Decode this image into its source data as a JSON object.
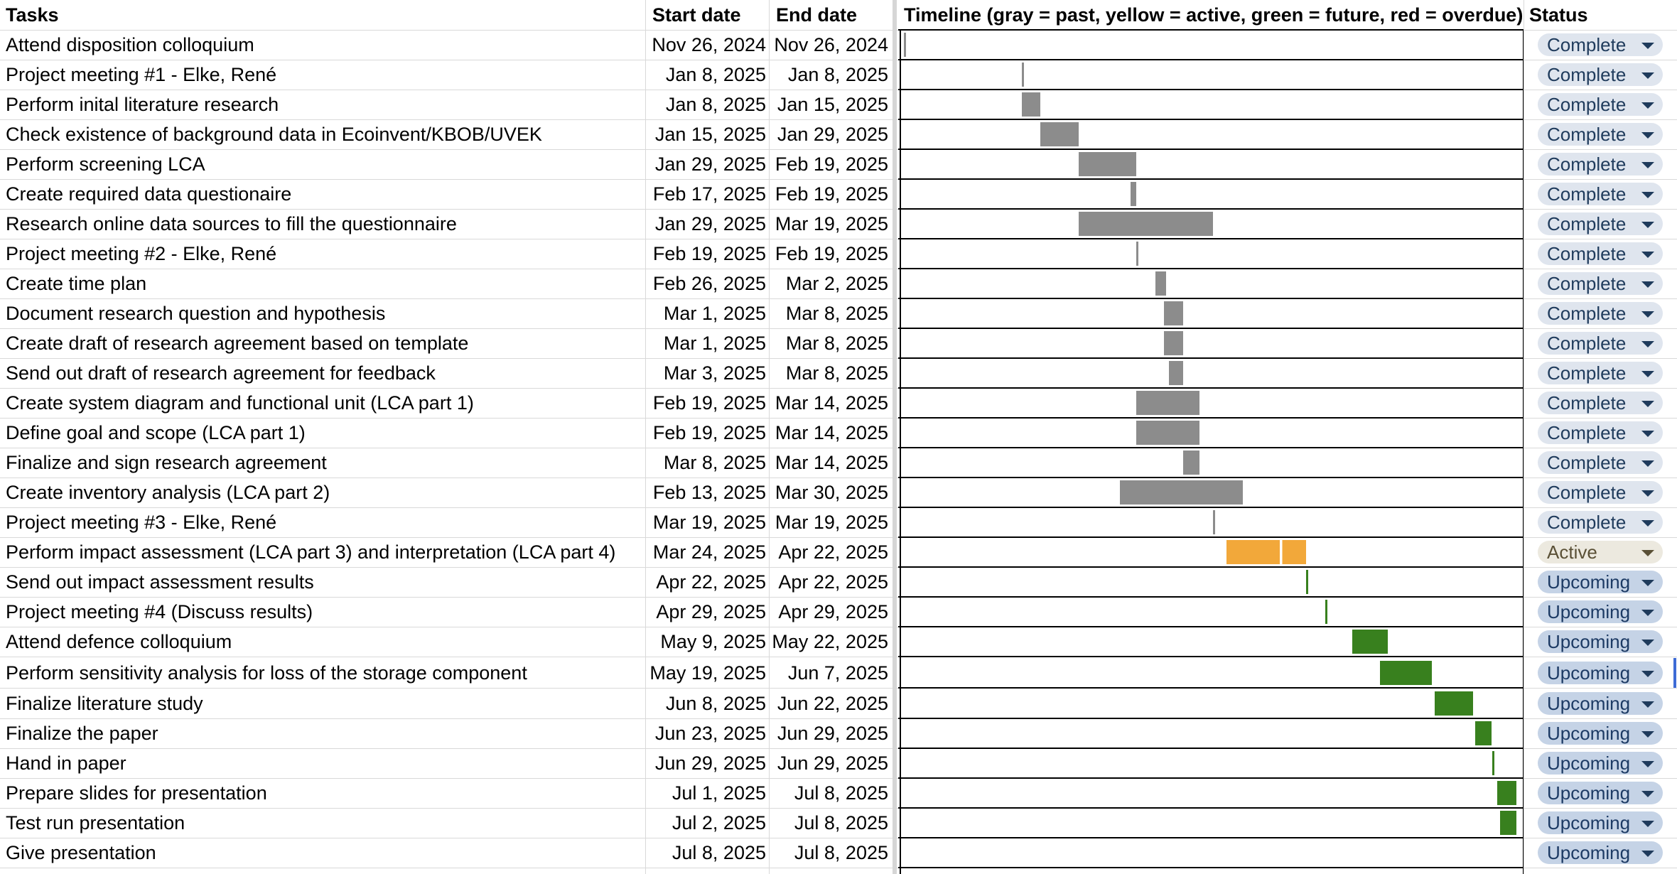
{
  "headers": {
    "tasks": "Tasks",
    "start": "Start date",
    "end": "End date",
    "timeline": "Timeline (gray = past, yellow = active, green = future, red = overdue)",
    "status": "Status"
  },
  "timeline_range": {
    "start": "2024-11-26",
    "end": "2025-07-09"
  },
  "colors": {
    "past": "#8c8c8c",
    "active": "#f2a83a",
    "future": "#38801e",
    "overdue": "#cc0000"
  },
  "status_options": [
    "Complete",
    "Active",
    "Upcoming"
  ],
  "rows": [
    {
      "task": "Attend disposition colloquium",
      "start": "Nov 26, 2024",
      "end": "Nov 26, 2024",
      "s": "2024-11-26",
      "e": "2024-11-26",
      "kind": "gray",
      "status": "Complete"
    },
    {
      "task": "Project meeting #1 - Elke, René",
      "start": "Jan 8, 2025",
      "end": "Jan 8, 2025",
      "s": "2025-01-08",
      "e": "2025-01-08",
      "kind": "gray",
      "status": "Complete"
    },
    {
      "task": "Perform inital literature research",
      "start": "Jan 8, 2025",
      "end": "Jan 15, 2025",
      "s": "2025-01-08",
      "e": "2025-01-15",
      "kind": "gray",
      "status": "Complete"
    },
    {
      "task": "Check existence of background data in Ecoinvent/KBOB/UVEK",
      "start": "Jan 15, 2025",
      "end": "Jan 29, 2025",
      "s": "2025-01-15",
      "e": "2025-01-29",
      "kind": "gray",
      "status": "Complete"
    },
    {
      "task": "Perform screening LCA",
      "start": "Jan 29, 2025",
      "end": "Feb 19, 2025",
      "s": "2025-01-29",
      "e": "2025-02-19",
      "kind": "gray",
      "status": "Complete"
    },
    {
      "task": "Create required data questionaire",
      "start": "Feb 17, 2025",
      "end": "Feb 19, 2025",
      "s": "2025-02-17",
      "e": "2025-02-19",
      "kind": "gray",
      "status": "Complete"
    },
    {
      "task": "Research online data sources to fill the questionnaire",
      "start": "Jan 29, 2025",
      "end": "Mar 19, 2025",
      "s": "2025-01-29",
      "e": "2025-03-19",
      "kind": "gray",
      "status": "Complete"
    },
    {
      "task": "Project meeting #2 - Elke, René",
      "start": "Feb 19, 2025",
      "end": "Feb 19, 2025",
      "s": "2025-02-19",
      "e": "2025-02-19",
      "kind": "gray",
      "status": "Complete"
    },
    {
      "task": "Create time plan",
      "start": "Feb 26, 2025",
      "end": "Mar 2, 2025",
      "s": "2025-02-26",
      "e": "2025-03-02",
      "kind": "gray",
      "status": "Complete"
    },
    {
      "task": "Document research question and hypothesis",
      "start": "Mar 1, 2025",
      "end": "Mar 8, 2025",
      "s": "2025-03-01",
      "e": "2025-03-08",
      "kind": "gray",
      "status": "Complete"
    },
    {
      "task": "Create draft of research agreement based on template",
      "start": "Mar 1, 2025",
      "end": "Mar 8, 2025",
      "s": "2025-03-01",
      "e": "2025-03-08",
      "kind": "gray",
      "status": "Complete"
    },
    {
      "task": "Send out draft of research agreement for feedback",
      "start": "Mar 3, 2025",
      "end": "Mar 8, 2025",
      "s": "2025-03-03",
      "e": "2025-03-08",
      "kind": "gray",
      "status": "Complete"
    },
    {
      "task": "Create system diagram and functional unit (LCA part 1)",
      "start": "Feb 19, 2025",
      "end": "Mar 14, 2025",
      "s": "2025-02-19",
      "e": "2025-03-14",
      "kind": "gray",
      "status": "Complete"
    },
    {
      "task": "Define goal and scope (LCA part 1)",
      "start": "Feb 19, 2025",
      "end": "Mar 14, 2025",
      "s": "2025-02-19",
      "e": "2025-03-14",
      "kind": "gray",
      "status": "Complete"
    },
    {
      "task": "Finalize and sign research agreement",
      "start": "Mar 8, 2025",
      "end": "Mar 14, 2025",
      "s": "2025-03-08",
      "e": "2025-03-14",
      "kind": "gray",
      "status": "Complete"
    },
    {
      "task": "Create inventory analysis (LCA part 2)",
      "start": "Feb 13, 2025",
      "end": "Mar 30, 2025",
      "s": "2025-02-13",
      "e": "2025-03-30",
      "kind": "gray",
      "status": "Complete"
    },
    {
      "task": "Project meeting #3 - Elke, René",
      "start": "Mar 19, 2025",
      "end": "Mar 19, 2025",
      "s": "2025-03-19",
      "e": "2025-03-19",
      "kind": "gray",
      "status": "Complete"
    },
    {
      "task": "Perform impact assessment (LCA part 3) and interpretation (LCA part 4)",
      "start": "Mar 24, 2025",
      "end": "Apr 22, 2025",
      "s": "2025-03-24",
      "e": "2025-04-22",
      "kind": "yellow",
      "status": "Active"
    },
    {
      "task": "Send out impact assessment results",
      "start": "Apr 22, 2025",
      "end": "Apr 22, 2025",
      "s": "2025-04-22",
      "e": "2025-04-22",
      "kind": "green",
      "status": "Upcoming"
    },
    {
      "task": "Project meeting #4 (Discuss results)",
      "start": "Apr 29, 2025",
      "end": "Apr 29, 2025",
      "s": "2025-04-29",
      "e": "2025-04-29",
      "kind": "green",
      "status": "Upcoming"
    },
    {
      "task": "Attend defence colloquium",
      "start": "May 9, 2025",
      "end": "May 22, 2025",
      "s": "2025-05-09",
      "e": "2025-05-22",
      "kind": "green",
      "status": "Upcoming"
    },
    {
      "task": "Perform sensitivity analysis for loss of the storage component",
      "start": "May 19, 2025",
      "end": "Jun 7, 2025",
      "s": "2025-05-19",
      "e": "2025-06-07",
      "kind": "green",
      "status": "Upcoming"
    },
    {
      "task": "Finalize literature study",
      "start": "Jun 8, 2025",
      "end": "Jun 22, 2025",
      "s": "2025-06-08",
      "e": "2025-06-22",
      "kind": "green",
      "status": "Upcoming"
    },
    {
      "task": "Finalize the paper",
      "start": "Jun 23, 2025",
      "end": "Jun 29, 2025",
      "s": "2025-06-23",
      "e": "2025-06-29",
      "kind": "green",
      "status": "Upcoming"
    },
    {
      "task": "Hand in paper",
      "start": "Jun 29, 2025",
      "end": "Jun 29, 2025",
      "s": "2025-06-29",
      "e": "2025-06-29",
      "kind": "green",
      "status": "Upcoming"
    },
    {
      "task": "Prepare slides for presentation",
      "start": "Jul 1, 2025",
      "end": "Jul 8, 2025",
      "s": "2025-07-01",
      "e": "2025-07-08",
      "kind": "green",
      "status": "Upcoming"
    },
    {
      "task": "Test run presentation",
      "start": "Jul 2, 2025",
      "end": "Jul 8, 2025",
      "s": "2025-07-02",
      "e": "2025-07-08",
      "kind": "green",
      "status": "Upcoming"
    },
    {
      "task": "Give presentation",
      "start": "Jul 8, 2025",
      "end": "Jul 8, 2025",
      "s": "2025-07-08",
      "e": "2025-07-08",
      "kind": "none",
      "status": "Upcoming"
    }
  ]
}
